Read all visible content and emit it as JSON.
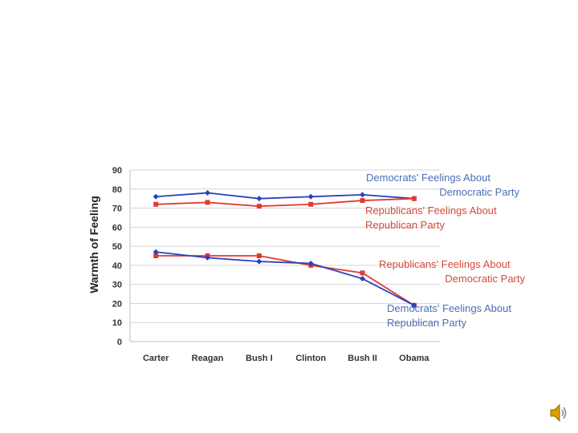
{
  "chart_data": {
    "type": "line",
    "title": "",
    "xlabel": "",
    "ylabel": "Warmth of Feeling",
    "categories": [
      "Carter",
      "Reagan",
      "Bush I",
      "Clinton",
      "Bush II",
      "Obama"
    ],
    "yticks": [
      0,
      10,
      20,
      30,
      40,
      50,
      60,
      70,
      80,
      90
    ],
    "ylim": [
      0,
      90
    ],
    "grid": true,
    "series": [
      {
        "name": "Democrats' Feelings About Democratic Party",
        "key": "dem_dem",
        "color": "#2a3fbf",
        "marker": "diamond",
        "values": [
          76,
          78,
          75,
          76,
          77,
          75
        ]
      },
      {
        "name": "Republicans' Feelings About Republican Party",
        "key": "rep_rep",
        "color": "#e03b2f",
        "marker": "square",
        "values": [
          72,
          73,
          71,
          72,
          74,
          75
        ]
      },
      {
        "name": "Republicans' Feelings About Democratic Party",
        "key": "rep_dem",
        "color": "#e03b2f",
        "marker": "square",
        "values": [
          45,
          45,
          45,
          40,
          36,
          19
        ]
      },
      {
        "name": "Democrats' Feelings About Republican Party",
        "key": "dem_rep",
        "color": "#2a3fbf",
        "marker": "diamond",
        "values": [
          47,
          44,
          42,
          41,
          33,
          19
        ]
      }
    ],
    "annotations": [
      {
        "series": "dem_dem",
        "color": "#4a6fb5",
        "lines": [
          "Democrats' Feelings About",
          "Democratic Party"
        ]
      },
      {
        "series": "rep_rep",
        "color": "#d44a3a",
        "lines": [
          "Republicans' Feelings About",
          "Republican Party"
        ]
      },
      {
        "series": "rep_dem",
        "color": "#d44a3a",
        "lines": [
          "Republicans' Feelings About",
          "Democratic Party"
        ]
      },
      {
        "series": "dem_rep",
        "color": "#4a6fb5",
        "lines": [
          "Democrats' Feelings About",
          "Republican Party"
        ]
      }
    ]
  },
  "icons": {
    "audio": "speaker-icon"
  }
}
